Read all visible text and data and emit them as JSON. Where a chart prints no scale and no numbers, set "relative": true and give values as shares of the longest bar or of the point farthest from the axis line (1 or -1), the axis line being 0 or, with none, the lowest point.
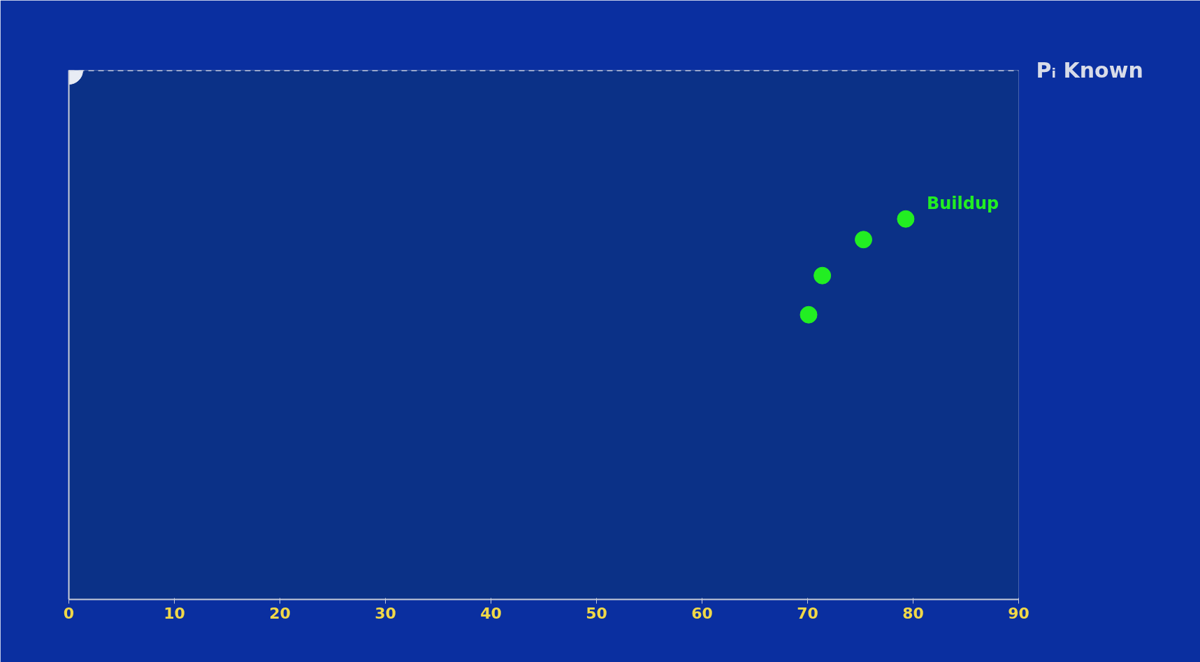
{
  "chart_data": {
    "type": "scatter",
    "relative": true,
    "marker": "circle",
    "grid": false,
    "xlim": [
      0,
      90
    ],
    "xticks": [
      0,
      10,
      20,
      30,
      40,
      50,
      60,
      70,
      80,
      90
    ],
    "series": [
      {
        "color": "#e8ecf4",
        "x": [
          0
        ],
        "values": [
          1
        ]
      },
      {
        "name": "Buildup",
        "color": "#22ee22",
        "x": [
          70.1,
          71.4,
          75.3,
          79.3
        ],
        "values": [
          0.538,
          0.612,
          0.68,
          0.719
        ]
      }
    ],
    "ref_lines": [
      {
        "axis": "y",
        "value": 1,
        "label": "Pᵢ Known",
        "color": "#d8dce8",
        "line_style": "dashed"
      }
    ]
  }
}
